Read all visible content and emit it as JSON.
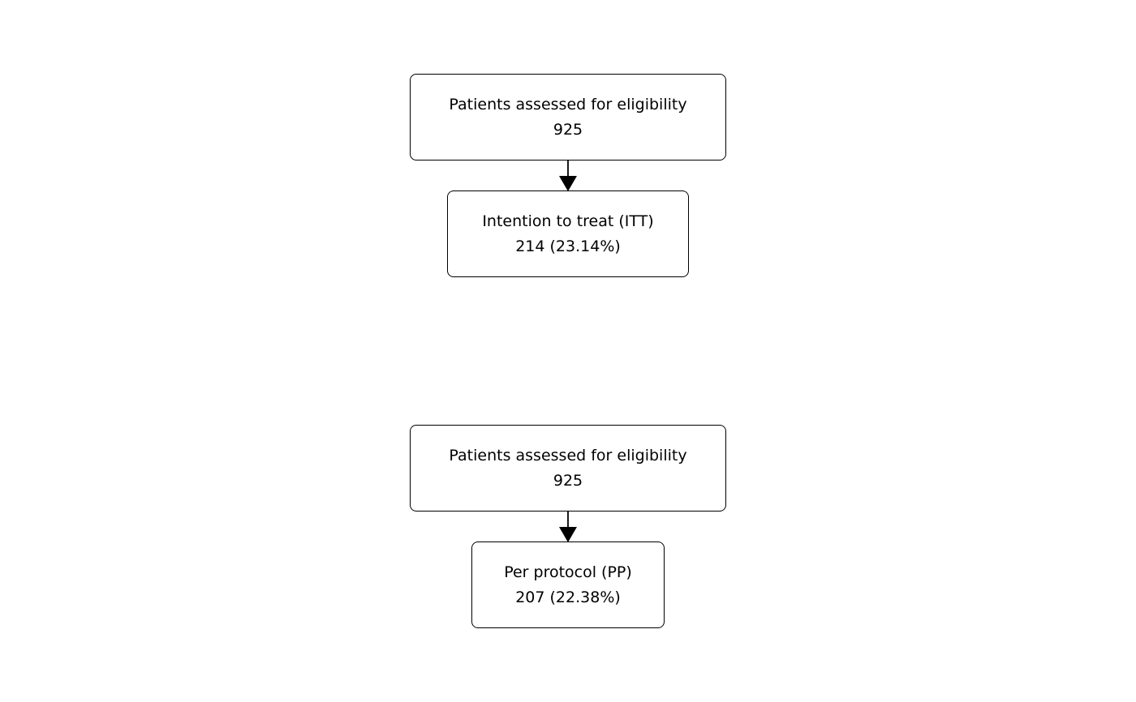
{
  "flowcharts": [
    {
      "top_box": {
        "label": "Patients assessed for eligibility",
        "count": "925"
      },
      "bottom_box": {
        "label": "Intention to treat (ITT)",
        "count": "214 (23.14%)"
      }
    },
    {
      "top_box": {
        "label": "Patients assessed for eligibility",
        "count": "925"
      },
      "bottom_box": {
        "label": "Per protocol (PP)",
        "count": "207 (22.38%)"
      }
    }
  ]
}
